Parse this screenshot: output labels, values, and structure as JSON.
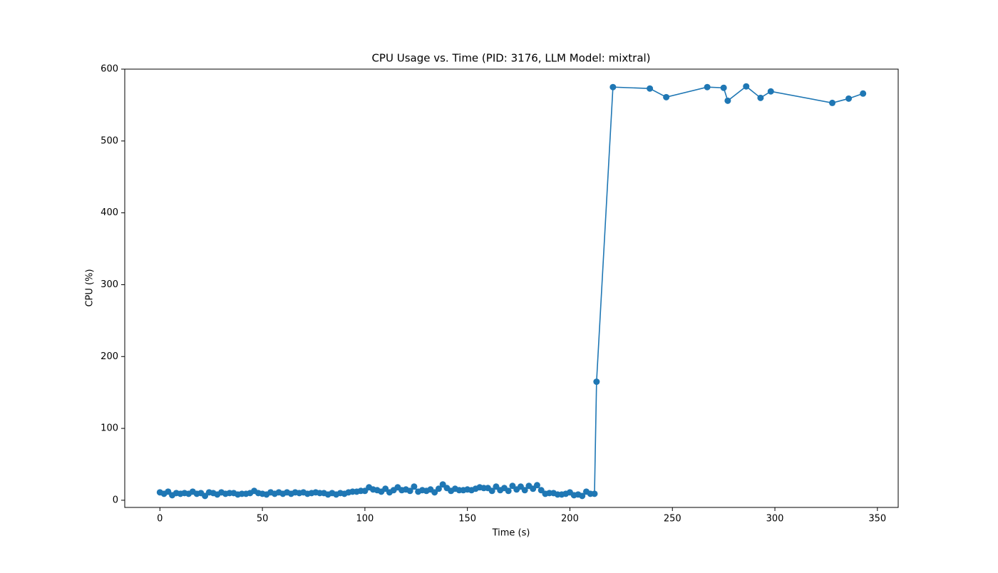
{
  "chart_data": {
    "type": "line",
    "title": "CPU Usage vs. Time (PID: 3176, LLM Model: mixtral)",
    "x_label": "Time (s)",
    "y_label": "CPU (%)",
    "color": "#1f77b4",
    "markers": true,
    "x": [
      0,
      2,
      4,
      6,
      8,
      10,
      12,
      14,
      16,
      18,
      20,
      22,
      24,
      26,
      28,
      30,
      32,
      34,
      36,
      38,
      40,
      42,
      44,
      46,
      48,
      50,
      52,
      54,
      56,
      58,
      60,
      62,
      64,
      66,
      68,
      70,
      72,
      74,
      76,
      78,
      80,
      82,
      84,
      86,
      88,
      90,
      92,
      94,
      96,
      98,
      100,
      102,
      104,
      106,
      108,
      110,
      112,
      114,
      116,
      118,
      120,
      122,
      124,
      126,
      128,
      130,
      132,
      134,
      136,
      138,
      140,
      142,
      144,
      146,
      148,
      150,
      152,
      154,
      156,
      158,
      160,
      162,
      164,
      166,
      168,
      170,
      172,
      174,
      176,
      178,
      180,
      182,
      184,
      186,
      188,
      190,
      192,
      194,
      196,
      198,
      200,
      202,
      204,
      206,
      208,
      210,
      212,
      213,
      221,
      239,
      247,
      267,
      275,
      277,
      286,
      293,
      298,
      328,
      336,
      343
    ],
    "values": [
      11,
      9,
      12,
      7,
      10,
      9,
      10,
      9,
      12,
      9,
      10,
      6,
      11,
      10,
      8,
      11,
      9,
      10,
      10,
      8,
      9,
      9,
      10,
      13,
      10,
      9,
      8,
      11,
      9,
      11,
      9,
      11,
      9,
      11,
      10,
      11,
      9,
      10,
      11,
      10,
      10,
      8,
      10,
      8,
      10,
      9,
      11,
      12,
      12,
      13,
      13,
      18,
      15,
      14,
      12,
      16,
      11,
      14,
      18,
      14,
      15,
      13,
      19,
      12,
      14,
      13,
      15,
      11,
      16,
      22,
      17,
      13,
      16,
      14,
      14,
      15,
      14,
      16,
      18,
      17,
      17,
      13,
      19,
      14,
      17,
      13,
      20,
      15,
      19,
      14,
      20,
      16,
      21,
      14,
      9,
      10,
      10,
      8,
      8,
      9,
      11,
      7,
      8,
      6,
      12,
      9,
      9,
      165,
      575,
      573,
      561,
      575,
      574,
      556,
      576,
      560,
      569,
      553,
      559,
      566
    ],
    "xlim": [
      -17.15,
      360.15
    ],
    "ylim": [
      -10,
      600
    ],
    "xticks": [
      0,
      50,
      100,
      150,
      200,
      250,
      300,
      350
    ],
    "yticks": [
      0,
      100,
      200,
      300,
      400,
      500,
      600
    ]
  }
}
